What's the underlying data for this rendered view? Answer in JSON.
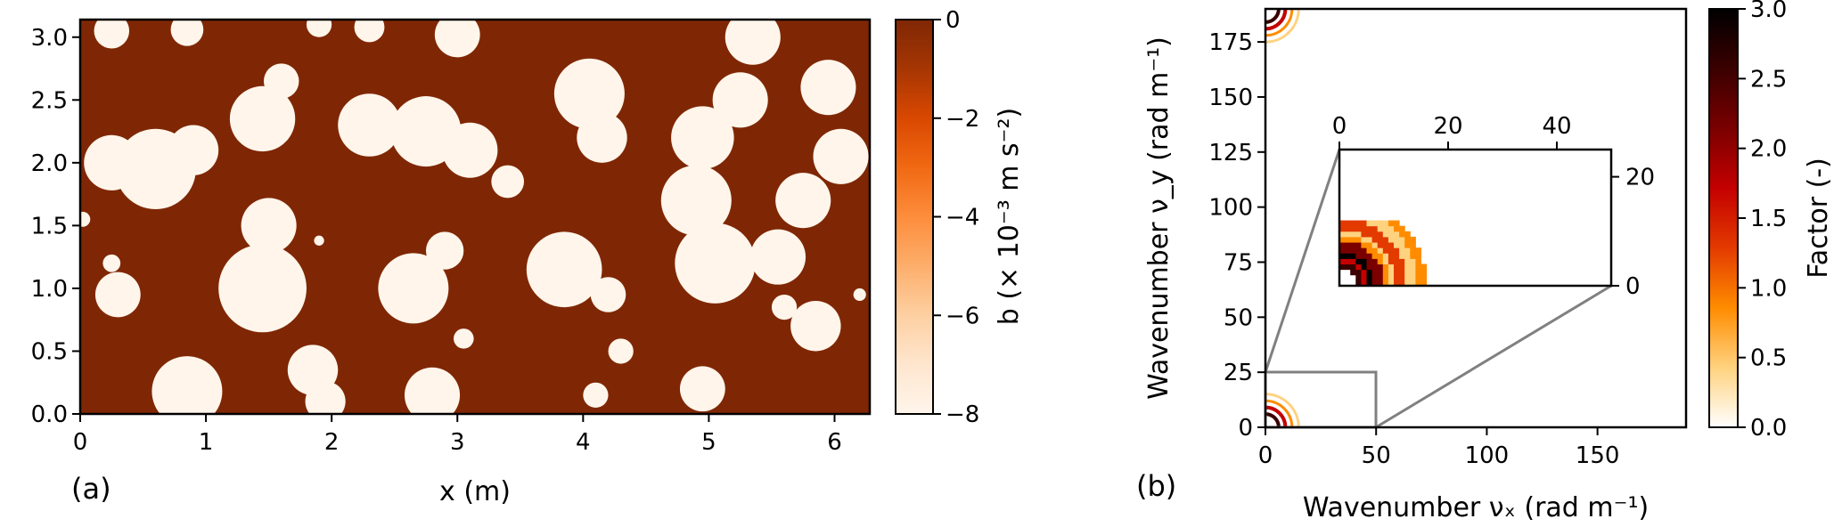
{
  "colors": {
    "pattern_dark": "#7f2704",
    "pattern_light": "#fff5eb",
    "oranges_cmap": [
      "#7f2704",
      "#a63603",
      "#d94801",
      "#f16913",
      "#fd8d3c",
      "#fdae6b",
      "#fdd0a2",
      "#fee6ce",
      "#fff5eb"
    ],
    "factor_cmap": [
      "#ffffff",
      "#ffd27f",
      "#ff8c00",
      "#e33a00",
      "#c40000",
      "#7a0000",
      "#3a0000",
      "#000000"
    ],
    "zoom_lines": "#808080"
  },
  "chart_data": [
    {
      "type": "heatmap",
      "panel_label": "(a)",
      "xlabel": "x (m)",
      "ylabel": "",
      "xlim": [
        0,
        6.28
      ],
      "ylim": [
        0,
        3.14
      ],
      "xticks": [
        "0",
        "1",
        "2",
        "3",
        "4",
        "5",
        "6"
      ],
      "yticks": [
        "0.0",
        "0.5",
        "1.0",
        "1.5",
        "2.0",
        "2.5",
        "3.0"
      ],
      "colorbar": {
        "label": "b (× 10⁻³ m s⁻²)",
        "range": [
          -8,
          0
        ],
        "ticks": [
          "0",
          "−2",
          "−4",
          "−6",
          "−8"
        ]
      },
      "description_values": {
        "background_value": 0,
        "blob_value": -8
      },
      "blobs": [
        {
          "x": 0.25,
          "y": 3.05,
          "r": 0.14
        },
        {
          "x": 0.85,
          "y": 3.06,
          "r": 0.13
        },
        {
          "x": 1.9,
          "y": 3.1,
          "r": 0.1
        },
        {
          "x": 2.3,
          "y": 3.08,
          "r": 0.12
        },
        {
          "x": 3.0,
          "y": 3.02,
          "r": 0.18
        },
        {
          "x": 0.6,
          "y": 1.95,
          "r": 0.32
        },
        {
          "x": 0.25,
          "y": 2.0,
          "r": 0.22
        },
        {
          "x": 0.9,
          "y": 2.1,
          "r": 0.2
        },
        {
          "x": 1.45,
          "y": 2.35,
          "r": 0.26
        },
        {
          "x": 1.6,
          "y": 2.65,
          "r": 0.14
        },
        {
          "x": 2.3,
          "y": 2.3,
          "r": 0.25
        },
        {
          "x": 2.75,
          "y": 2.25,
          "r": 0.28
        },
        {
          "x": 3.1,
          "y": 2.1,
          "r": 0.22
        },
        {
          "x": 3.4,
          "y": 1.85,
          "r": 0.13
        },
        {
          "x": 4.05,
          "y": 2.55,
          "r": 0.28
        },
        {
          "x": 4.15,
          "y": 2.2,
          "r": 0.2
        },
        {
          "x": 1.45,
          "y": 1.0,
          "r": 0.35
        },
        {
          "x": 1.5,
          "y": 1.5,
          "r": 0.22
        },
        {
          "x": 0.3,
          "y": 0.95,
          "r": 0.18
        },
        {
          "x": 0.25,
          "y": 1.2,
          "r": 0.07
        },
        {
          "x": 2.65,
          "y": 1.0,
          "r": 0.28
        },
        {
          "x": 2.9,
          "y": 1.3,
          "r": 0.15
        },
        {
          "x": 3.85,
          "y": 1.15,
          "r": 0.3
        },
        {
          "x": 4.2,
          "y": 0.95,
          "r": 0.14
        },
        {
          "x": 0.85,
          "y": 0.18,
          "r": 0.28
        },
        {
          "x": 1.85,
          "y": 0.35,
          "r": 0.2
        },
        {
          "x": 1.95,
          "y": 0.1,
          "r": 0.16
        },
        {
          "x": 2.8,
          "y": 0.15,
          "r": 0.22
        },
        {
          "x": 3.05,
          "y": 0.6,
          "r": 0.08
        },
        {
          "x": 4.3,
          "y": 0.5,
          "r": 0.1
        },
        {
          "x": 4.1,
          "y": 0.15,
          "r": 0.1
        },
        {
          "x": 4.95,
          "y": 0.2,
          "r": 0.18
        },
        {
          "x": 5.05,
          "y": 1.2,
          "r": 0.32
        },
        {
          "x": 4.9,
          "y": 1.7,
          "r": 0.28
        },
        {
          "x": 4.95,
          "y": 2.2,
          "r": 0.25
        },
        {
          "x": 5.25,
          "y": 2.5,
          "r": 0.22
        },
        {
          "x": 5.55,
          "y": 1.25,
          "r": 0.22
        },
        {
          "x": 5.75,
          "y": 1.7,
          "r": 0.22
        },
        {
          "x": 5.95,
          "y": 2.6,
          "r": 0.22
        },
        {
          "x": 6.05,
          "y": 2.05,
          "r": 0.22
        },
        {
          "x": 5.35,
          "y": 3.0,
          "r": 0.22
        },
        {
          "x": 5.6,
          "y": 0.85,
          "r": 0.1
        },
        {
          "x": 5.85,
          "y": 0.7,
          "r": 0.2
        },
        {
          "x": 6.2,
          "y": 0.95,
          "r": 0.05
        },
        {
          "x": 0.02,
          "y": 1.55,
          "r": 0.06
        },
        {
          "x": 1.9,
          "y": 1.38,
          "r": 0.04
        }
      ]
    },
    {
      "type": "heatmap",
      "panel_label": "(b)",
      "xlabel": "Wavenumber νₓ (rad m⁻¹)",
      "ylabel": "Wavenumber ν_y (rad m⁻¹)",
      "xlim": [
        0,
        190
      ],
      "ylim": [
        0,
        190
      ],
      "xticks": [
        "0",
        "50",
        "100",
        "150"
      ],
      "yticks": [
        "0",
        "25",
        "50",
        "75",
        "100",
        "125",
        "150",
        "175"
      ],
      "colorbar": {
        "label": "Factor (-)",
        "range": [
          0,
          3.0
        ],
        "ticks": [
          "3.0",
          "2.5",
          "2.0",
          "1.5",
          "1.0",
          "0.5",
          "0.0"
        ]
      },
      "inset": {
        "xticks": [
          "0",
          "20",
          "40"
        ],
        "yticks": [
          "20",
          "0"
        ],
        "xlim": [
          0,
          50
        ],
        "ylim": [
          0,
          25
        ],
        "zoom_box": {
          "x": [
            0,
            50
          ],
          "y": [
            0,
            25
          ]
        }
      }
    }
  ]
}
